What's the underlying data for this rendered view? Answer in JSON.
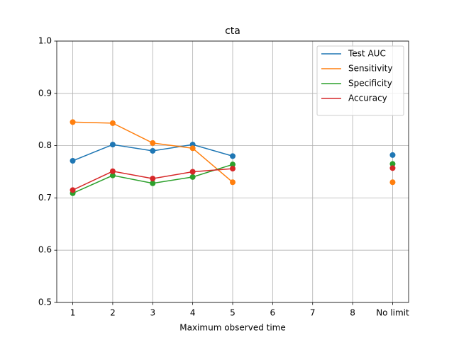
{
  "chart_data": {
    "type": "line",
    "title": "cta",
    "x_label": "Maximum observed time",
    "categories": [
      "1",
      "2",
      "3",
      "4",
      "5",
      "6",
      "7",
      "8",
      "No limit"
    ],
    "series": [
      {
        "name": "Test AUC",
        "color": "#1f77b4",
        "values": [
          0.771,
          0.802,
          0.79,
          0.802,
          0.78,
          null,
          null,
          null,
          0.782
        ]
      },
      {
        "name": "Sensitivity",
        "color": "#ff7f0e",
        "values": [
          0.845,
          0.843,
          0.805,
          0.795,
          0.73,
          null,
          null,
          null,
          0.73
        ]
      },
      {
        "name": "Specificity",
        "color": "#2ca02c",
        "values": [
          0.709,
          0.743,
          0.728,
          0.74,
          0.764,
          null,
          null,
          null,
          0.765
        ]
      },
      {
        "name": "Accuracy",
        "color": "#d62728",
        "values": [
          0.715,
          0.751,
          0.737,
          0.75,
          0.756,
          null,
          null,
          null,
          0.757
        ]
      }
    ],
    "ylim": [
      0.5,
      1
    ],
    "yticks": [
      0.5,
      0.6,
      0.7,
      0.8,
      0.9,
      {
        "value": 1,
        "label": "1.0"
      }
    ],
    "grid": true,
    "legend": "upper right"
  }
}
